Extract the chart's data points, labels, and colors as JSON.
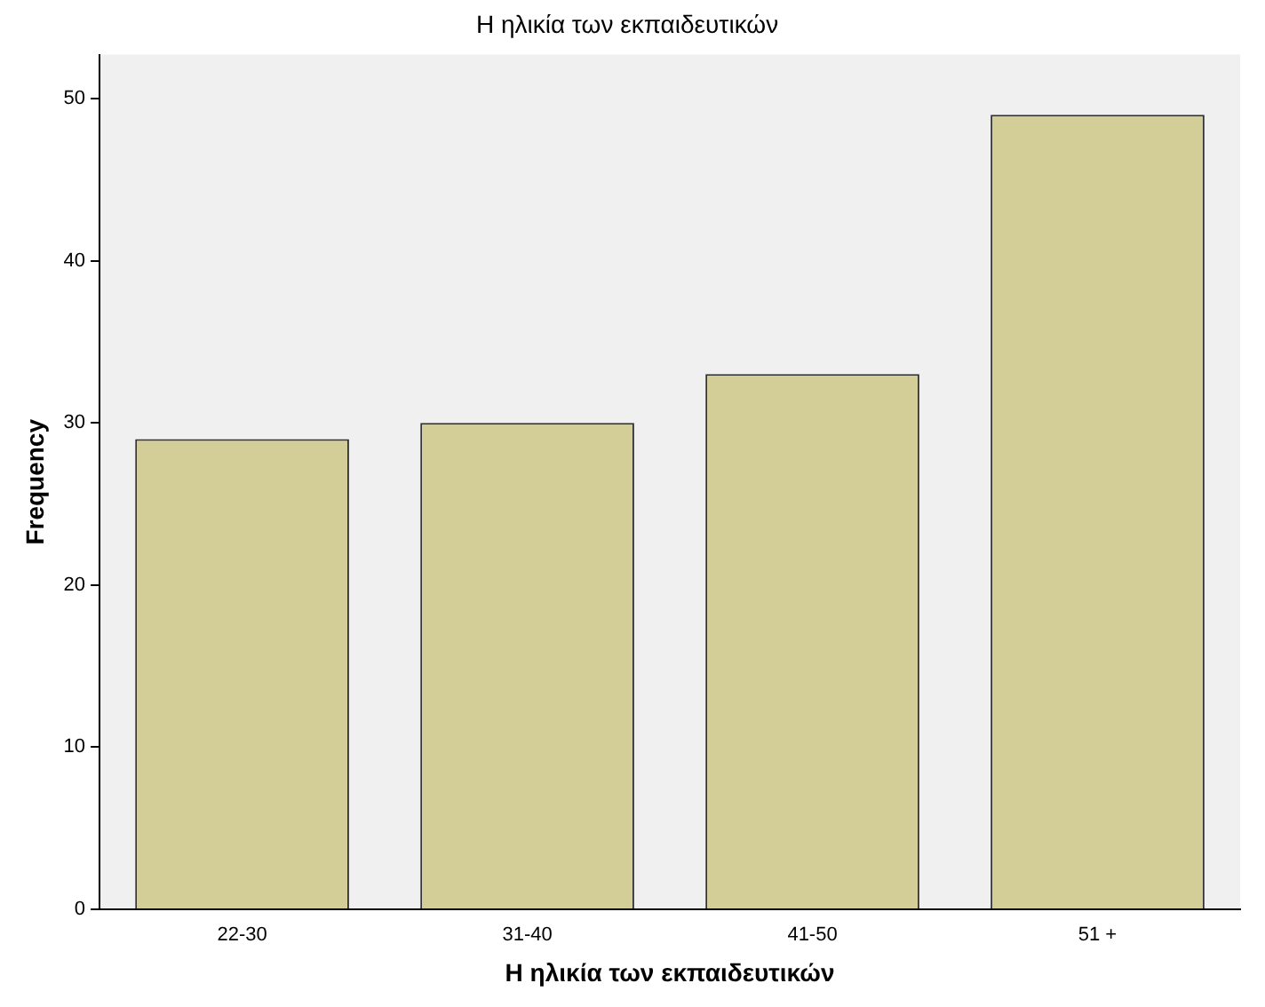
{
  "chart_data": {
    "type": "bar",
    "title": "Η ηλικία των εκπαιδευτικών",
    "xlabel": "Η ηλικία των εκπαιδευτικών",
    "ylabel": "Frequency",
    "categories": [
      "22-30",
      "31-40",
      "41-50",
      "51 +"
    ],
    "values": [
      29,
      30,
      33,
      49
    ],
    "color": "#d3ce97",
    "ylim": [
      0,
      52.7
    ],
    "yticks": [
      0,
      10,
      20,
      30,
      40,
      50
    ],
    "grid": false,
    "legend": false
  }
}
